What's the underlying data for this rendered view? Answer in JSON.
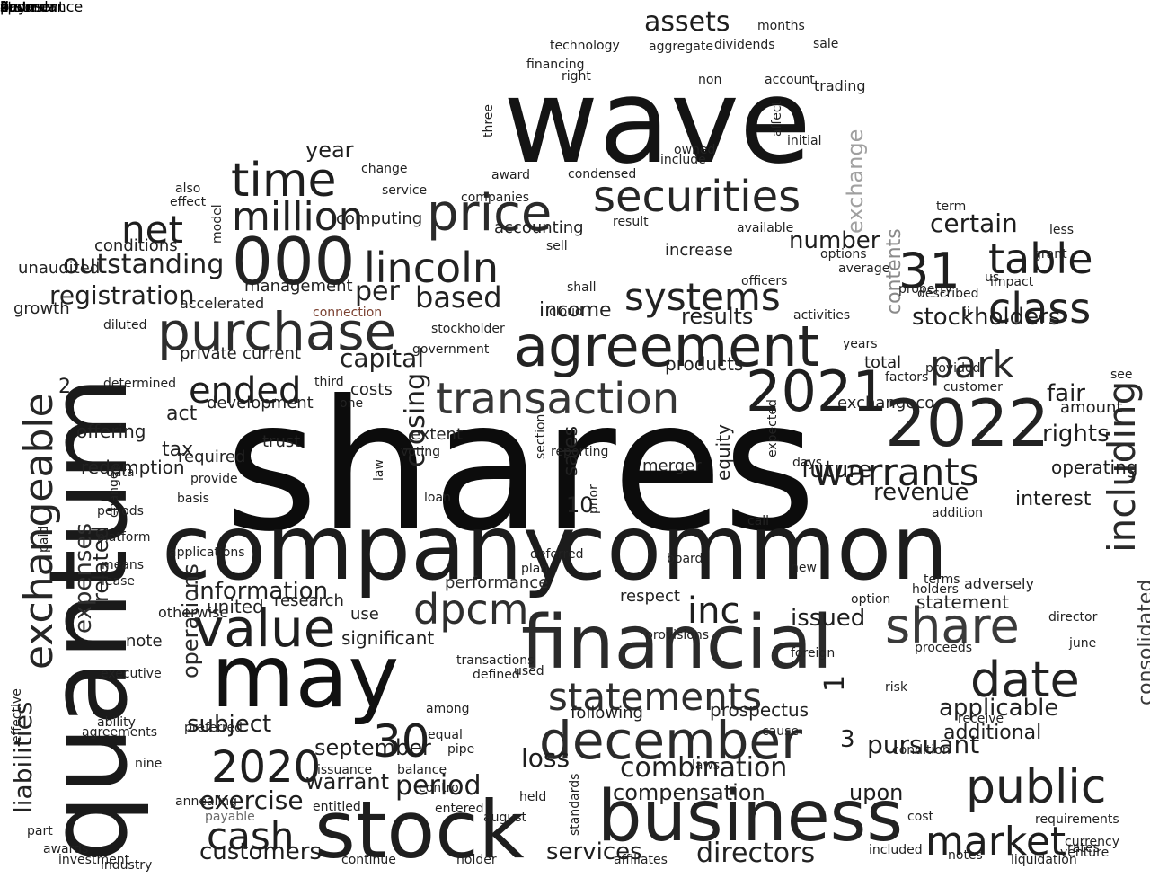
{
  "word_cloud": {
    "words": [
      {
        "text": "shares",
        "color": "#0c0c0c"
      },
      {
        "text": "wave",
        "color": "#141414"
      },
      {
        "text": "quantum",
        "color": "#1a1a1a"
      },
      {
        "text": "company",
        "color": "#1c1c1c"
      },
      {
        "text": "common",
        "color": "#1c1c1c"
      },
      {
        "text": "stock",
        "color": "#1e1e1e"
      },
      {
        "text": "business",
        "color": "#222222"
      },
      {
        "text": "may",
        "color": "#111111"
      },
      {
        "text": "financial",
        "color": "#2a2a2a"
      },
      {
        "text": "agreement",
        "color": "#222222"
      },
      {
        "text": "securities",
        "color": "#262626"
      },
      {
        "text": "purchase",
        "color": "#2c2c2c"
      },
      {
        "text": "000",
        "color": "#222222"
      },
      {
        "text": "price",
        "color": "#2a2a2a"
      },
      {
        "text": "2022",
        "color": "#222222"
      },
      {
        "text": "2021",
        "color": "#1e1e1e"
      },
      {
        "text": "transaction",
        "color": "#363636"
      },
      {
        "text": "december",
        "color": "#2a2a2a"
      },
      {
        "text": "statements",
        "color": "#2e2e2e"
      },
      {
        "text": "public",
        "color": "#222222"
      },
      {
        "text": "share",
        "color": "#3a3a3a"
      },
      {
        "text": "value",
        "color": "#1e1e1e"
      },
      {
        "text": "time",
        "color": "#1e1e1e"
      },
      {
        "text": "million",
        "color": "#222222"
      },
      {
        "text": "systems",
        "color": "#222222"
      },
      {
        "text": "exchangeable",
        "color": "#262626"
      },
      {
        "text": "lincoln",
        "color": "#222222"
      },
      {
        "text": "class",
        "color": "#222222"
      },
      {
        "text": "warrants",
        "color": "#1e1e1e"
      },
      {
        "text": "date",
        "color": "#222222"
      },
      {
        "text": "market",
        "color": "#1e1e1e"
      },
      {
        "text": "ended",
        "color": "#1e1e1e"
      },
      {
        "text": "net",
        "color": "#1e1e1e"
      },
      {
        "text": "dpcm",
        "color": "#2e2e2e"
      },
      {
        "text": "table",
        "color": "#1e1e1e"
      },
      {
        "text": "31",
        "color": "#1e1e1e"
      },
      {
        "text": "30",
        "color": "#1e1e1e"
      },
      {
        "text": "2020",
        "color": "#1e1e1e"
      },
      {
        "text": "cash",
        "color": "#1e1e1e"
      },
      {
        "text": "park",
        "color": "#2a2a2a"
      },
      {
        "text": "inc",
        "color": "#1e1e1e"
      },
      {
        "text": "including",
        "color": "#2a2a2a"
      },
      {
        "text": "consolidated",
        "color": "#3a3a3a"
      },
      {
        "text": "liabilities",
        "color": "#222222"
      },
      {
        "text": "period",
        "color": "#1e1e1e"
      },
      {
        "text": "combination",
        "color": "#222222"
      },
      {
        "text": "services",
        "color": "#1e1e1e"
      },
      {
        "text": "directors",
        "color": "#222222"
      },
      {
        "text": "customers",
        "color": "#1e1e1e"
      },
      {
        "text": "registration",
        "color": "#222222"
      },
      {
        "text": "outstanding",
        "color": "#222222"
      },
      {
        "text": "assets",
        "color": "#1e1e1e"
      },
      {
        "text": "contents",
        "color": "#8a8a8a"
      },
      {
        "text": "exchange",
        "color": "#a0a0a0"
      },
      {
        "text": "stockholders",
        "color": "#1e1e1e"
      },
      {
        "text": "results",
        "color": "#222222"
      },
      {
        "text": "pursuant",
        "color": "#1e1e1e"
      },
      {
        "text": "information",
        "color": "#222222"
      },
      {
        "text": "issued",
        "color": "#1e1e1e"
      },
      {
        "text": "rights",
        "color": "#1e1e1e"
      },
      {
        "text": "fair",
        "color": "#1e1e1e"
      },
      {
        "text": "number",
        "color": "#1e1e1e"
      },
      {
        "text": "certain",
        "color": "#1e1e1e"
      },
      {
        "text": "capital",
        "color": "#222222"
      },
      {
        "text": "per",
        "color": "#222222"
      },
      {
        "text": "based",
        "color": "#222222"
      },
      {
        "text": "income",
        "color": "#222222"
      },
      {
        "text": "revenue",
        "color": "#1e1e1e"
      },
      {
        "text": "future",
        "color": "#1e1e1e"
      },
      {
        "text": "loss",
        "color": "#1e1e1e"
      },
      {
        "text": "upon",
        "color": "#1e1e1e"
      },
      {
        "text": "exercise",
        "color": "#1e1e1e"
      },
      {
        "text": "subject",
        "color": "#1e1e1e"
      },
      {
        "text": "september",
        "color": "#1e1e1e"
      },
      {
        "text": "year",
        "color": "#1e1e1e"
      },
      {
        "text": "related",
        "color": "#222222"
      },
      {
        "text": "expenses",
        "color": "#2e2e2e"
      },
      {
        "text": "operations",
        "color": "#2a2a2a"
      },
      {
        "text": "applicable",
        "color": "#222222"
      },
      {
        "text": "additional",
        "color": "#1e1e1e"
      },
      {
        "text": "following",
        "color": "#1e1e1e"
      },
      {
        "text": "prospectus",
        "color": "#222222"
      },
      {
        "text": "compensation",
        "color": "#222222"
      },
      {
        "text": "warrant",
        "color": "#222222"
      },
      {
        "text": "closing",
        "color": "#222222"
      },
      {
        "text": "10",
        "color": "#1e1e1e"
      },
      {
        "text": "1",
        "color": "#1e1e1e"
      },
      {
        "text": "2",
        "color": "#1e1e1e"
      },
      {
        "text": "3",
        "color": "#1e1e1e"
      },
      {
        "text": "statement",
        "color": "#222222"
      },
      {
        "text": "operating",
        "color": "#1e1e1e"
      },
      {
        "text": "amount",
        "color": "#1e1e1e"
      },
      {
        "text": "interest",
        "color": "#1e1e1e"
      },
      {
        "text": "total",
        "color": "#1e1e1e"
      },
      {
        "text": "tax",
        "color": "#222222"
      },
      {
        "text": "act",
        "color": "#222222"
      },
      {
        "text": "offering",
        "color": "#222222"
      },
      {
        "text": "redemption",
        "color": "#222222"
      },
      {
        "text": "research",
        "color": "#222222"
      },
      {
        "text": "significant",
        "color": "#222222"
      },
      {
        "text": "use",
        "color": "#222222"
      },
      {
        "text": "note",
        "color": "#222222"
      },
      {
        "text": "united",
        "color": "#222222"
      },
      {
        "text": "respect",
        "color": "#222222"
      },
      {
        "text": "performance",
        "color": "#2a2a2a"
      },
      {
        "text": "sales",
        "color": "#222222"
      },
      {
        "text": "equity",
        "color": "#222222"
      },
      {
        "text": "merger",
        "color": "#222222"
      },
      {
        "text": "products",
        "color": "#222222"
      },
      {
        "text": "exchangeco",
        "color": "#222222"
      },
      {
        "text": "increase",
        "color": "#222222"
      },
      {
        "text": "accounting",
        "color": "#222222"
      },
      {
        "text": "computing",
        "color": "#222222"
      },
      {
        "text": "costs",
        "color": "#222222"
      },
      {
        "text": "current",
        "color": "#222222"
      },
      {
        "text": "private",
        "color": "#222222"
      },
      {
        "text": "development",
        "color": "#222222"
      },
      {
        "text": "required",
        "color": "#222222"
      },
      {
        "text": "trust",
        "color": "#222222"
      },
      {
        "text": "management",
        "color": "#222222"
      },
      {
        "text": "conditions",
        "color": "#222222"
      },
      {
        "text": "unaudited",
        "color": "#222222"
      },
      {
        "text": "growth",
        "color": "#222222"
      },
      {
        "text": "accelerated",
        "color": "#222222"
      },
      {
        "text": "connection",
        "color": "#7a4030"
      },
      {
        "text": "diluted",
        "color": "#222222"
      },
      {
        "text": "determined",
        "color": "#222222"
      },
      {
        "text": "data",
        "color": "#222222"
      },
      {
        "text": "periods",
        "color": "#222222"
      },
      {
        "text": "platform",
        "color": "#222222"
      },
      {
        "text": "means",
        "color": "#222222"
      },
      {
        "text": "lease",
        "color": "#222222"
      },
      {
        "text": "preferred",
        "color": "#222222"
      },
      {
        "text": "ability",
        "color": "#222222"
      },
      {
        "text": "nine",
        "color": "#222222"
      },
      {
        "text": "annealing",
        "color": "#222222"
      },
      {
        "text": "payable",
        "color": "#6a6a6a"
      },
      {
        "text": "part",
        "color": "#222222"
      },
      {
        "text": "awards",
        "color": "#222222"
      },
      {
        "text": "industry",
        "color": "#222222"
      },
      {
        "text": "investment",
        "color": "#222222"
      },
      {
        "text": "continue",
        "color": "#222222"
      },
      {
        "text": "holder",
        "color": "#222222"
      },
      {
        "text": "control",
        "color": "#222222"
      },
      {
        "text": "issuance",
        "color": "#222222"
      },
      {
        "text": "entitled",
        "color": "#222222"
      },
      {
        "text": "entered",
        "color": "#222222"
      },
      {
        "text": "balance",
        "color": "#222222"
      },
      {
        "text": "pipe",
        "color": "#222222"
      },
      {
        "text": "august",
        "color": "#222222"
      },
      {
        "text": "held",
        "color": "#222222"
      },
      {
        "text": "standards",
        "color": "#222222"
      },
      {
        "text": "affiliates",
        "color": "#222222"
      },
      {
        "text": "laws",
        "color": "#222222"
      },
      {
        "text": "included",
        "color": "#222222"
      },
      {
        "text": "notes",
        "color": "#222222"
      },
      {
        "text": "liquidation",
        "color": "#222222"
      },
      {
        "text": "requirements",
        "color": "#222222"
      },
      {
        "text": "currency",
        "color": "#222222"
      },
      {
        "text": "rates",
        "color": "#222222"
      },
      {
        "text": "venture",
        "color": "#222222"
      },
      {
        "text": "cost",
        "color": "#222222"
      },
      {
        "text": "condition",
        "color": "#222222"
      },
      {
        "text": "receive",
        "color": "#222222"
      },
      {
        "text": "risk",
        "color": "#222222"
      },
      {
        "text": "proceeds",
        "color": "#222222"
      },
      {
        "text": "june",
        "color": "#222222"
      },
      {
        "text": "director",
        "color": "#222222"
      },
      {
        "text": "terms",
        "color": "#222222"
      },
      {
        "text": "addition",
        "color": "#222222"
      },
      {
        "text": "holders",
        "color": "#222222"
      },
      {
        "text": "years",
        "color": "#222222"
      },
      {
        "text": "customer",
        "color": "#222222"
      },
      {
        "text": "provided",
        "color": "#222222"
      },
      {
        "text": "factors",
        "color": "#222222"
      },
      {
        "text": "described",
        "color": "#222222"
      },
      {
        "text": "us",
        "color": "#222222"
      },
      {
        "text": "ii",
        "color": "#222222"
      },
      {
        "text": "impact",
        "color": "#222222"
      },
      {
        "text": "grant",
        "color": "#222222"
      },
      {
        "text": "term",
        "color": "#222222"
      },
      {
        "text": "less",
        "color": "#222222"
      },
      {
        "text": "options",
        "color": "#222222"
      },
      {
        "text": "average",
        "color": "#222222"
      },
      {
        "text": "sale",
        "color": "#222222"
      },
      {
        "text": "months",
        "color": "#222222"
      },
      {
        "text": "technology",
        "color": "#222222"
      },
      {
        "text": "aggregate",
        "color": "#222222"
      },
      {
        "text": "dividends",
        "color": "#222222"
      },
      {
        "text": "financing",
        "color": "#222222"
      },
      {
        "text": "right",
        "color": "#222222"
      },
      {
        "text": "non",
        "color": "#222222"
      },
      {
        "text": "account",
        "color": "#222222"
      },
      {
        "text": "affect",
        "color": "#222222"
      },
      {
        "text": "initial",
        "color": "#222222"
      },
      {
        "text": "include",
        "color": "#222222"
      },
      {
        "text": "owned",
        "color": "#222222"
      },
      {
        "text": "result",
        "color": "#222222"
      },
      {
        "text": "available",
        "color": "#222222"
      },
      {
        "text": "award",
        "color": "#222222"
      },
      {
        "text": "condensed",
        "color": "#222222"
      },
      {
        "text": "companies",
        "color": "#222222"
      },
      {
        "text": "service",
        "color": "#222222"
      },
      {
        "text": "also",
        "color": "#222222"
      },
      {
        "text": "change",
        "color": "#222222"
      },
      {
        "text": "effect",
        "color": "#222222"
      },
      {
        "text": "model",
        "color": "#222222"
      },
      {
        "text": "sell",
        "color": "#222222"
      },
      {
        "text": "shall",
        "color": "#222222"
      },
      {
        "text": "cloud",
        "color": "#222222"
      },
      {
        "text": "officers",
        "color": "#222222"
      },
      {
        "text": "activities",
        "color": "#222222"
      },
      {
        "text": "stockholder",
        "color": "#222222"
      },
      {
        "text": "government",
        "color": "#222222"
      },
      {
        "text": "three",
        "color": "#222222"
      },
      {
        "text": "third",
        "color": "#222222"
      },
      {
        "text": "one",
        "color": "#222222"
      },
      {
        "text": "voting",
        "color": "#222222"
      },
      {
        "text": "section",
        "color": "#222222"
      },
      {
        "text": "reporting",
        "color": "#222222"
      },
      {
        "text": "prior",
        "color": "#222222"
      },
      {
        "text": "call",
        "color": "#222222"
      },
      {
        "text": "days",
        "color": "#222222"
      },
      {
        "text": "law",
        "color": "#222222"
      },
      {
        "text": "provide",
        "color": "#222222"
      },
      {
        "text": "basis",
        "color": "#222222"
      },
      {
        "text": "changes",
        "color": "#222222"
      },
      {
        "text": "paid",
        "color": "#222222"
      },
      {
        "text": "executive",
        "color": "#222222"
      },
      {
        "text": "effective",
        "color": "#222222"
      },
      {
        "text": "agreements",
        "color": "#222222"
      },
      {
        "text": "applications",
        "color": "#222222"
      },
      {
        "text": "transactions",
        "color": "#222222"
      },
      {
        "text": "defined",
        "color": "#222222"
      },
      {
        "text": "among",
        "color": "#222222"
      },
      {
        "text": "equal",
        "color": "#222222"
      },
      {
        "text": "provisions",
        "color": "#222222"
      },
      {
        "text": "board",
        "color": "#222222"
      },
      {
        "text": "cause",
        "color": "#222222"
      },
      {
        "text": "foreign",
        "color": "#222222"
      },
      {
        "text": "new",
        "color": "#222222"
      },
      {
        "text": "expected",
        "color": "#222222"
      },
      {
        "text": "option",
        "color": "#222222"
      },
      {
        "text": "property",
        "color": "#222222"
      },
      {
        "text": "see",
        "color": "#222222"
      },
      {
        "text": "deferred",
        "color": "#222222"
      },
      {
        "text": "otherwise",
        "color": "#222222"
      },
      {
        "text": "adversely",
        "color": "#222222"
      },
      {
        "text": "trading",
        "color": "#222222"
      },
      {
        "text": "extent",
        "color": "#222222"
      },
      {
        "text": "used",
        "color": "#222222"
      },
      {
        "text": "loan",
        "color": "#222222"
      },
      {
        "text": "plan",
        "color": "#222222"
      },
      {
        "text": "sponsor",
        "color": "#222222"
      },
      {
        "text": "states",
        "color": "#222222"
      },
      {
        "text": "accordance",
        "color": "#222222"
      },
      {
        "text": "payment",
        "color": "#222222"
      },
      {
        "text": "first",
        "color": "#222222"
      },
      {
        "text": "7",
        "color": "#222222"
      },
      {
        "text": "4",
        "color": "#222222"
      },
      {
        "text": "5",
        "color": "#222222"
      },
      {
        "text": "0",
        "color": "#222222"
      },
      {
        "text": "f",
        "color": "#222222"
      },
      {
        "text": "b",
        "color": "#222222"
      },
      {
        "text": "15",
        "color": "#222222"
      },
      {
        "text": "00",
        "color": "#222222"
      }
    ]
  }
}
